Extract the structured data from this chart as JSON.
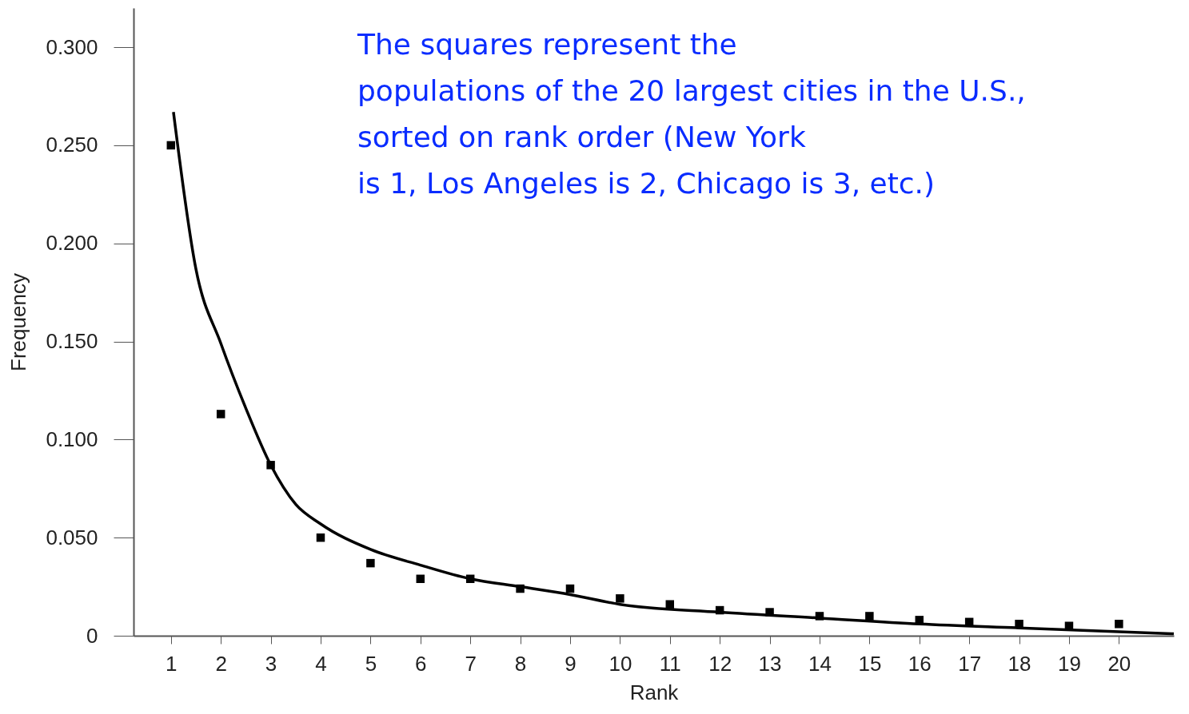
{
  "chart_data": {
    "type": "scatter",
    "xlabel": "Rank",
    "ylabel": "Frequency",
    "annotations": [
      "The squares represent the\npopulations of the 20 largest cities in the U.S.,\nsorted on rank order (New York\nis 1, Los Angeles is 2, Chicago is 3, etc.)"
    ],
    "x": [
      1,
      2,
      3,
      4,
      5,
      6,
      7,
      8,
      9,
      10,
      11,
      12,
      13,
      14,
      15,
      16,
      17,
      18,
      19,
      20
    ],
    "series": [
      {
        "color": "#000000",
        "marker": "square",
        "values": [
          0.25,
          0.113,
          0.087,
          0.05,
          0.037,
          0.029,
          0.029,
          0.024,
          0.024,
          0.019,
          0.016,
          0.013,
          0.012,
          0.01,
          0.01,
          0.008,
          0.007,
          0.006,
          0.005,
          0.006
        ]
      },
      {
        "type": "line",
        "color": "#000000",
        "x": [
          1.05,
          1.5,
          2,
          2.5,
          3,
          3.5,
          4,
          5,
          6,
          7,
          8,
          9,
          10,
          12,
          14,
          16,
          18,
          21.1
        ],
        "values": [
          0.267,
          0.187,
          0.149,
          0.116,
          0.087,
          0.067,
          0.057,
          0.044,
          0.036,
          0.029,
          0.025,
          0.021,
          0.016,
          0.012,
          0.009,
          0.006,
          0.004,
          0.001
        ]
      }
    ],
    "xlim": [
      0.25,
      21.1
    ],
    "xticks": [
      1,
      2,
      3,
      4,
      5,
      6,
      7,
      8,
      9,
      10,
      11,
      12,
      13,
      14,
      15,
      16,
      17,
      18,
      19,
      20
    ],
    "ylim": [
      0,
      0.32
    ],
    "yticks": [
      0,
      {
        "value": 0.05,
        "label": "0.050"
      },
      {
        "value": 0.1,
        "label": "0.100"
      },
      {
        "value": 0.15,
        "label": "0.150"
      },
      {
        "value": 0.2,
        "label": "0.200"
      },
      {
        "value": 0.25,
        "label": "0.250"
      },
      {
        "value": 0.3,
        "label": "0.300"
      }
    ],
    "grid": false
  }
}
